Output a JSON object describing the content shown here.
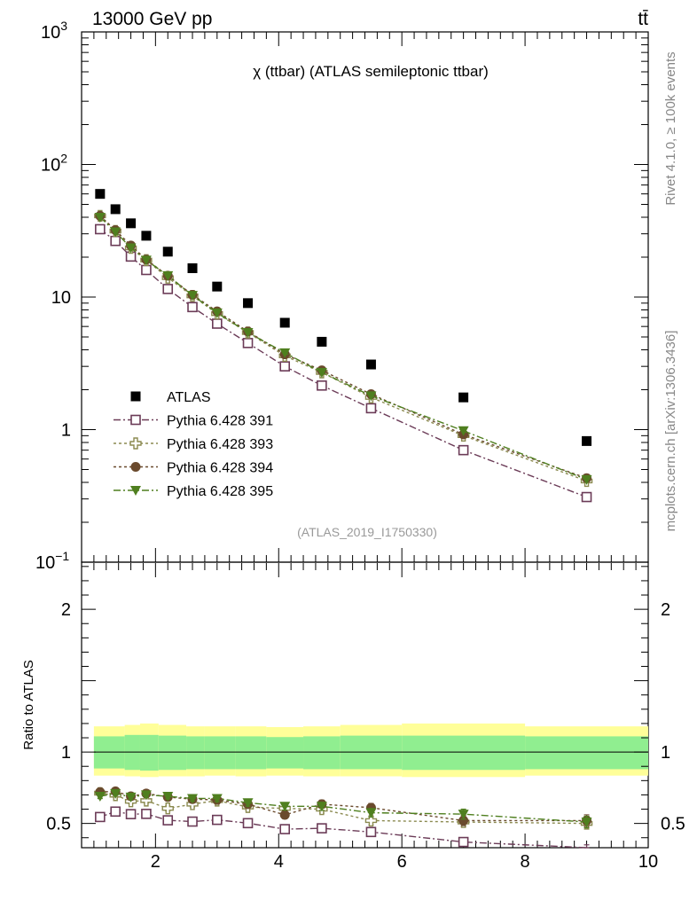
{
  "header": {
    "left_label": "13000 GeV pp",
    "right_label": "tt̄"
  },
  "side_labels": {
    "rivet": "Rivet 4.1.0, ≥ 100k events",
    "mcplots": "mcplots.cern.ch [arXiv:1306.3436]"
  },
  "ratio_ylabel": "Ratio to ATLAS",
  "chart_data": [
    {
      "type": "scatter",
      "title": "χ (ttbar) (ATLAS semileptonic ttbar)",
      "analysis_id": "(ATLAS_2019_I1750330)",
      "yscale": "log",
      "xlim": [
        0.8,
        10
      ],
      "ylim": [
        0.1,
        1000
      ],
      "ytick_labels": [
        {
          "base": "10",
          "exp": "3",
          "v": 1000
        },
        {
          "base": "10",
          "exp": "2",
          "v": 100
        },
        {
          "base": "10",
          "exp": "",
          "v": 10
        },
        {
          "base": "1",
          "exp": "",
          "v": 1
        },
        {
          "base": "10",
          "exp": "−1",
          "v": 0.1
        }
      ],
      "x": [
        1.1,
        1.35,
        1.6,
        1.85,
        2.2,
        2.6,
        3.0,
        3.5,
        4.1,
        4.7,
        5.5,
        7.0,
        9.0
      ],
      "series": [
        {
          "name": "ATLAS",
          "color": "#000000",
          "marker": "square-filled",
          "values": [
            60,
            46,
            36,
            29,
            22,
            16.5,
            12,
            9,
            6.4,
            4.6,
            3.1,
            1.75,
            0.82
          ]
        },
        {
          "name": "Pythia 6.428 391",
          "color": "#6b3b57",
          "marker": "square-open",
          "dash": "8,3,2,3",
          "values": [
            32.5,
            26.5,
            20.2,
            16.0,
            11.5,
            8.4,
            6.3,
            4.5,
            3.0,
            2.15,
            1.45,
            0.7,
            0.31
          ]
        },
        {
          "name": "Pythia 6.428 393",
          "color": "#8b8a50",
          "marker": "plus-open",
          "dash": "3,3",
          "values": [
            41,
            31.5,
            23.5,
            19,
            14,
            10.2,
            7.5,
            5.4,
            3.6,
            2.7,
            1.75,
            0.9,
            0.41
          ]
        },
        {
          "name": "Pythia 6.428 394",
          "color": "#6a4a2d",
          "marker": "circle-filled",
          "dash": "3,3",
          "values": [
            41,
            32,
            24.5,
            19.2,
            14.5,
            10.4,
            7.8,
            5.5,
            3.7,
            2.8,
            1.85,
            0.92,
            0.43
          ]
        },
        {
          "name": "Pythia 6.428 395",
          "color": "#4f7f1f",
          "marker": "triangle-down-filled",
          "dash": "8,3,2,3",
          "values": [
            40,
            31,
            23.5,
            19,
            14.5,
            10.3,
            7.6,
            5.4,
            3.8,
            2.7,
            1.8,
            0.98,
            0.42
          ]
        }
      ]
    },
    {
      "type": "scatter",
      "ylabel": "Ratio to ATLAS",
      "xlim": [
        0.8,
        10
      ],
      "ylim": [
        0.33,
        2.33
      ],
      "xtick_labels": [
        "2",
        "4",
        "6",
        "8",
        "10"
      ],
      "ytick_labels": [
        "0.5",
        "1",
        "2"
      ],
      "reference_line": 1,
      "band_edges": [
        1.0,
        1.5,
        1.75,
        2.05,
        2.5,
        2.8,
        3.3,
        3.8,
        4.4,
        5.0,
        6.0,
        8.0,
        10.0
      ],
      "band_inner": [
        [
          0.885,
          1.11
        ],
        [
          0.875,
          1.12
        ],
        [
          0.87,
          1.12
        ],
        [
          0.875,
          1.115
        ],
        [
          0.88,
          1.11
        ],
        [
          0.88,
          1.11
        ],
        [
          0.88,
          1.11
        ],
        [
          0.885,
          1.105
        ],
        [
          0.88,
          1.11
        ],
        [
          0.88,
          1.115
        ],
        [
          0.875,
          1.115
        ],
        [
          0.88,
          1.11
        ]
      ],
      "band_outer": [
        [
          0.835,
          1.18
        ],
        [
          0.83,
          1.19
        ],
        [
          0.825,
          1.2
        ],
        [
          0.83,
          1.19
        ],
        [
          0.83,
          1.18
        ],
        [
          0.835,
          1.18
        ],
        [
          0.83,
          1.18
        ],
        [
          0.835,
          1.175
        ],
        [
          0.83,
          1.18
        ],
        [
          0.83,
          1.19
        ],
        [
          0.825,
          1.2
        ],
        [
          0.835,
          1.18
        ]
      ],
      "band_colors": {
        "inner": "#90ee90",
        "outer": "#ffff99"
      },
      "x": [
        1.1,
        1.35,
        1.6,
        1.85,
        2.2,
        2.6,
        3.0,
        3.5,
        4.1,
        4.7,
        5.5,
        7.0,
        9.0
      ],
      "series": [
        {
          "name": "Pythia 6.428 391",
          "color": "#6b3b57",
          "marker": "square-open",
          "dash": "8,3,2,3",
          "values": [
            0.545,
            0.583,
            0.565,
            0.567,
            0.522,
            0.513,
            0.525,
            0.502,
            0.46,
            0.466,
            0.44,
            0.37,
            0.33
          ],
          "errors": [
            0.012,
            0.012,
            0.012,
            0.013,
            0.014,
            0.015,
            0.016,
            0.018,
            0.02,
            0.022,
            0.024,
            0.02,
            0.02
          ]
        },
        {
          "name": "Pythia 6.428 393",
          "color": "#8b8a50",
          "marker": "plus-open",
          "dash": "3,3",
          "values": [
            0.712,
            0.698,
            0.655,
            0.66,
            0.605,
            0.635,
            0.66,
            0.615,
            0.605,
            0.6,
            0.52,
            0.51,
            0.5
          ],
          "errors": [
            0.015,
            0.015,
            0.016,
            0.017,
            0.018,
            0.02,
            0.022,
            0.024,
            0.026,
            0.028,
            0.03,
            0.035,
            0.04
          ]
        },
        {
          "name": "Pythia 6.428 394",
          "color": "#6a4a2d",
          "marker": "circle-filled",
          "dash": "3,3",
          "values": [
            0.72,
            0.725,
            0.69,
            0.71,
            0.685,
            0.67,
            0.665,
            0.635,
            0.56,
            0.635,
            0.61,
            0.52,
            0.52
          ],
          "errors": [
            0.015,
            0.015,
            0.016,
            0.017,
            0.018,
            0.02,
            0.022,
            0.024,
            0.026,
            0.028,
            0.03,
            0.035,
            0.04
          ]
        },
        {
          "name": "Pythia 6.428 395",
          "color": "#4f7f1f",
          "marker": "triangle-down-filled",
          "dash": "8,3,2,3",
          "values": [
            0.69,
            0.71,
            0.685,
            0.7,
            0.69,
            0.675,
            0.675,
            0.645,
            0.62,
            0.62,
            0.575,
            0.565,
            0.51
          ],
          "errors": [
            0.015,
            0.015,
            0.016,
            0.017,
            0.018,
            0.02,
            0.022,
            0.024,
            0.026,
            0.028,
            0.03,
            0.035,
            0.04
          ]
        }
      ]
    }
  ]
}
